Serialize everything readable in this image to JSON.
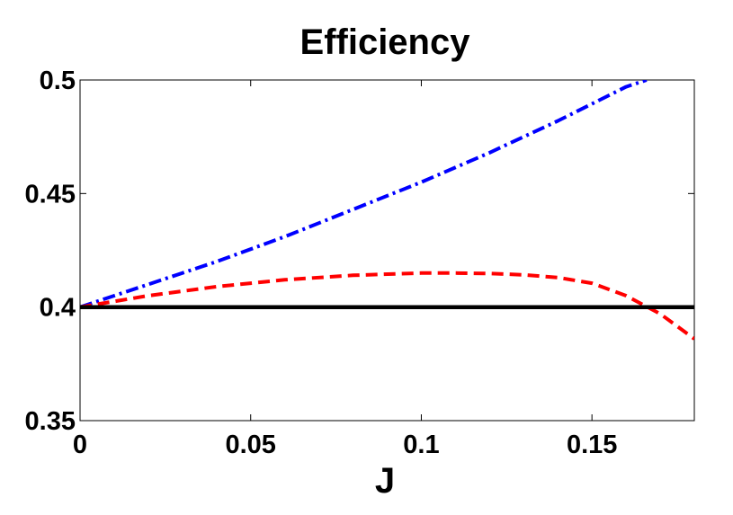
{
  "chart_data": {
    "type": "line",
    "title": "Efficiency",
    "xlabel": "J",
    "ylabel": "",
    "xlim": [
      0,
      0.18
    ],
    "ylim": [
      0.35,
      0.5
    ],
    "xticks": [
      0,
      0.05,
      0.1,
      0.15
    ],
    "xtick_labels": [
      "0",
      "0.05",
      "0.1",
      "0.15"
    ],
    "yticks": [
      0.35,
      0.4,
      0.45,
      0.5
    ],
    "ytick_labels": [
      "0.35",
      "0.4",
      "0.45",
      "0.5"
    ],
    "grid": false,
    "legend": "none",
    "series": [
      {
        "style": "dash-dot",
        "color": "#0000ff",
        "x": [
          0,
          0.02,
          0.04,
          0.06,
          0.08,
          0.1,
          0.12,
          0.14,
          0.16,
          0.166
        ],
        "y": [
          0.4,
          0.41,
          0.42,
          0.431,
          0.443,
          0.455,
          0.468,
          0.482,
          0.497,
          0.5
        ]
      },
      {
        "style": "dashed",
        "color": "#ff0000",
        "x": [
          0,
          0.02,
          0.04,
          0.06,
          0.08,
          0.1,
          0.11,
          0.12,
          0.13,
          0.14,
          0.15,
          0.16,
          0.17,
          0.18
        ],
        "y": [
          0.4,
          0.405,
          0.409,
          0.412,
          0.414,
          0.415,
          0.415,
          0.4148,
          0.4142,
          0.413,
          0.4105,
          0.405,
          0.397,
          0.386
        ]
      },
      {
        "style": "solid",
        "color": "#000000",
        "x": [
          0,
          0.18
        ],
        "y": [
          0.4,
          0.4
        ]
      }
    ]
  }
}
